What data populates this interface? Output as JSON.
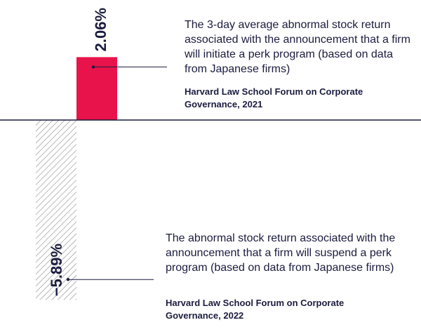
{
  "chart_data": {
    "type": "bar",
    "categories": [
      "Initiate perk program",
      "Suspend perk program"
    ],
    "values": [
      2.06,
      -5.89
    ],
    "value_labels": [
      "2.06%",
      "−5.89%"
    ],
    "ylim": [
      -5.89,
      2.06
    ],
    "colors": [
      "#e8134a",
      "hatched-gray"
    ],
    "annotations": [
      {
        "text": "The 3-day average abnormal stock return associated with the announcement that a firm will initiate a perk program (based on data from Japanese firms)",
        "source": "Harvard Law School Forum on Corporate Governance, 2021"
      },
      {
        "text": "The abnormal stock return associated with the announcement that a firm will suspend a perk program (based on data from Japanese firms)",
        "source": "Harvard Law School Forum on Corporate Governance, 2022"
      }
    ]
  },
  "colors": {
    "ink": "#1b1c3f",
    "positive_bar": "#e8134a",
    "hatch": "#8a8a8a"
  }
}
